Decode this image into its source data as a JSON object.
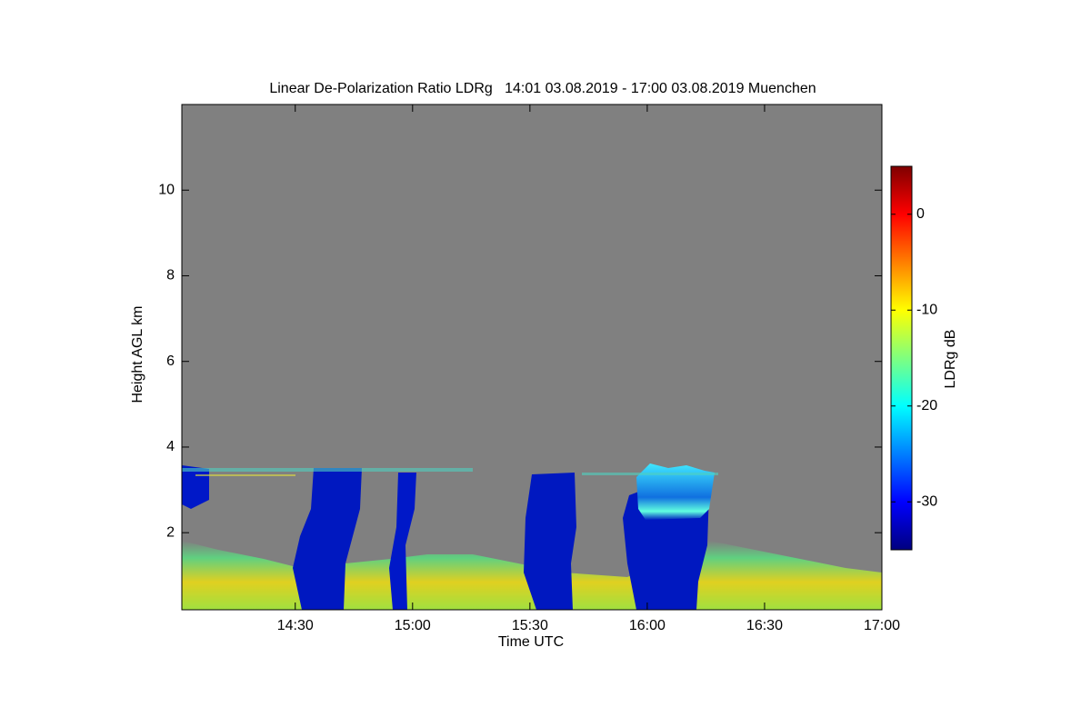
{
  "chart_data": {
    "type": "heatmap",
    "title": "Linear De-Polarization Ratio LDRg   14:01 03.08.2019 - 17:00 03.08.2019 Muenchen",
    "xlabel": "Time UTC",
    "ylabel": "Height AGL km",
    "xlim": [
      "14:01",
      "17:00"
    ],
    "xticks": [
      "14:30",
      "15:00",
      "15:30",
      "16:00",
      "16:30",
      "17:00"
    ],
    "ylim": [
      0.2,
      12
    ],
    "yticks": [
      2,
      4,
      6,
      8,
      10
    ],
    "colorbar": {
      "label": "LDRg dB",
      "lim": [
        -35,
        5
      ],
      "ticks": [
        0,
        -10,
        -20,
        -30
      ],
      "colormap": "jet"
    },
    "background": "#808080"
  }
}
